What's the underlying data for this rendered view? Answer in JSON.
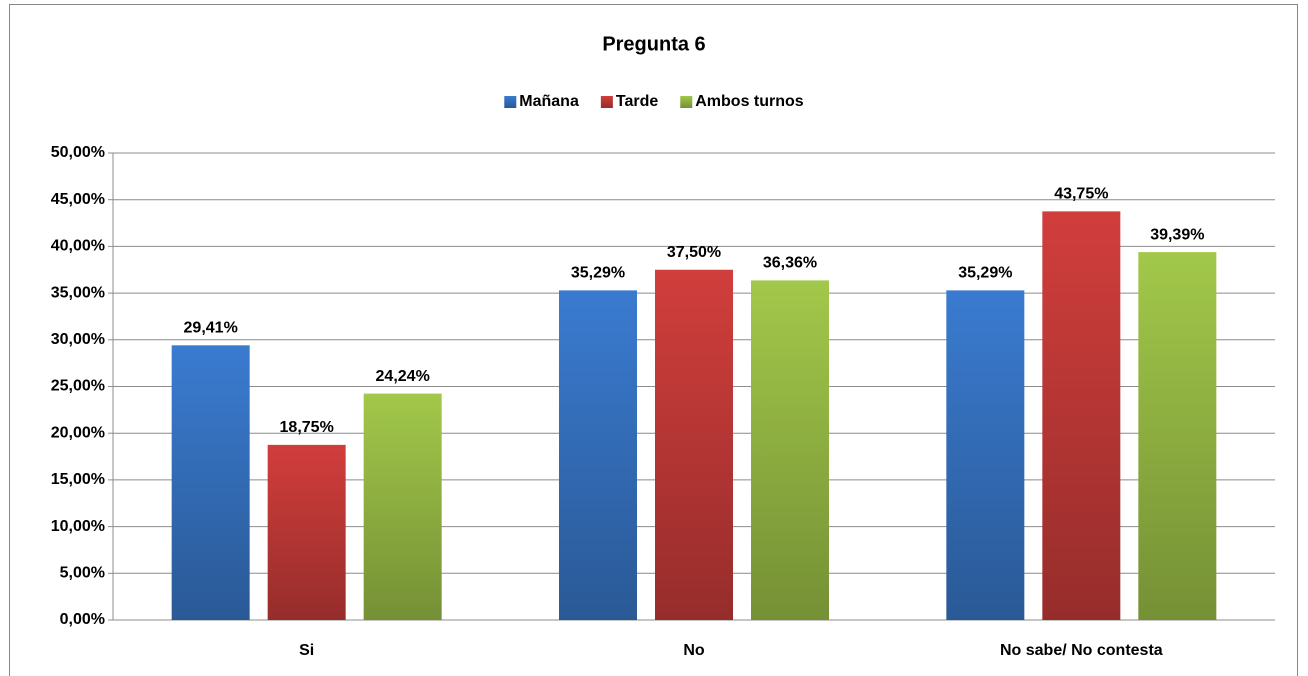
{
  "chart_data": {
    "type": "bar",
    "title": "Pregunta 6",
    "categories": [
      "Si",
      "No",
      "No sabe/ No contesta"
    ],
    "series": [
      {
        "name": "Mañana",
        "color": "#3a7bd0",
        "values": [
          29.41,
          35.29,
          35.29
        ],
        "value_labels": [
          "29,41%",
          "35,29%",
          "35,29%"
        ]
      },
      {
        "name": "Tarde",
        "color": "#d13e3c",
        "values": [
          18.75,
          37.5,
          43.75
        ],
        "value_labels": [
          "18,75%",
          "37,50%",
          "43,75%"
        ]
      },
      {
        "name": "Ambos turnos",
        "color": "#a2c84a",
        "values": [
          24.24,
          36.36,
          39.39
        ],
        "value_labels": [
          "24,24%",
          "36,36%",
          "39,39%"
        ]
      }
    ],
    "ylim": [
      0,
      50
    ],
    "yticks": [
      {
        "value": 0,
        "label": "0,00%"
      },
      {
        "value": 5,
        "label": "5,00%"
      },
      {
        "value": 10,
        "label": "10,00%"
      },
      {
        "value": 15,
        "label": "15,00%"
      },
      {
        "value": 20,
        "label": "20,00%"
      },
      {
        "value": 25,
        "label": "25,00%"
      },
      {
        "value": 30,
        "label": "30,00%"
      },
      {
        "value": 35,
        "label": "35,00%"
      },
      {
        "value": 40,
        "label": "40,00%"
      },
      {
        "value": 45,
        "label": "45,00%"
      },
      {
        "value": 50,
        "label": "50,00%"
      }
    ],
    "grid": true,
    "legend": "top"
  }
}
